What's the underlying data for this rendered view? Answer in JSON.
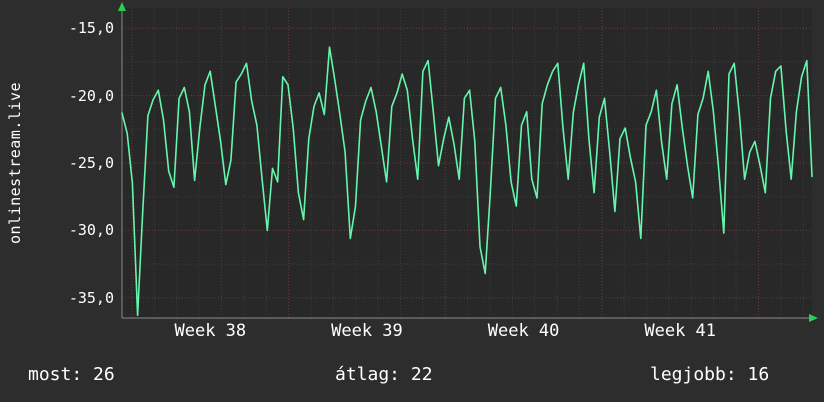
{
  "watermark": "onlinestream.live",
  "stats": {
    "most": "most: 26",
    "atlag": "átlag: 22",
    "legjobb": "legjobb: 16"
  },
  "chart_data": {
    "type": "line",
    "title": "",
    "xlabel": "",
    "ylabel": "onlinestream.live",
    "line_color": "#63f7ad",
    "arrow_color": "#27d152",
    "grid": "dotted minor gray, major red, dark background",
    "legend": "none",
    "ylim": [
      -36.5,
      -13.5
    ],
    "y_ticks": [
      -15,
      -20,
      -25,
      -30,
      -35
    ],
    "y_tick_labels": [
      "-15,0",
      "-20,0",
      "-25,0",
      "-30,0",
      "-35,0"
    ],
    "x_tick_labels": [
      "Week 38",
      "Week 39",
      "Week 40",
      "Week 41"
    ],
    "week_frac_start": 0.0145,
    "week_frac_step": 0.227,
    "values": [
      -21.3,
      -22.8,
      -26.5,
      -36.3,
      -28.5,
      -21.5,
      -20.3,
      -19.6,
      -21.8,
      -25.6,
      -26.8,
      -20.2,
      -19.4,
      -21.2,
      -26.3,
      -22.4,
      -19.2,
      -18.2,
      -20.8,
      -23.4,
      -26.6,
      -24.8,
      -19.0,
      -18.4,
      -17.6,
      -20.4,
      -22.2,
      -26.2,
      -30.0,
      -25.4,
      -26.4,
      -18.6,
      -19.2,
      -22.4,
      -27.2,
      -29.2,
      -23.2,
      -20.8,
      -19.8,
      -21.4,
      -16.4,
      -18.8,
      -21.4,
      -24.2,
      -30.6,
      -28.2,
      -21.8,
      -20.4,
      -19.4,
      -21.2,
      -23.8,
      -26.4,
      -20.8,
      -19.8,
      -18.4,
      -19.6,
      -23.2,
      -26.2,
      -18.2,
      -17.4,
      -21.2,
      -25.2,
      -23.2,
      -21.6,
      -23.6,
      -26.2,
      -20.2,
      -19.6,
      -23.4,
      -31.2,
      -33.2,
      -27.2,
      -20.2,
      -19.4,
      -22.2,
      -26.4,
      -28.2,
      -22.2,
      -21.2,
      -26.2,
      -27.6,
      -20.6,
      -19.2,
      -18.2,
      -17.6,
      -22.4,
      -26.2,
      -21.2,
      -19.2,
      -17.6,
      -23.2,
      -27.2,
      -21.6,
      -20.2,
      -24.2,
      -28.6,
      -23.2,
      -22.4,
      -24.6,
      -26.4,
      -30.6,
      -22.2,
      -21.2,
      -19.6,
      -23.4,
      -26.2,
      -20.6,
      -19.2,
      -22.4,
      -25.2,
      -27.6,
      -21.4,
      -20.2,
      -18.2,
      -21.2,
      -25.4,
      -30.2,
      -18.4,
      -17.6,
      -21.4,
      -26.2,
      -24.2,
      -23.4,
      -25.2,
      -27.2,
      -20.2,
      -18.2,
      -17.8,
      -22.6,
      -26.2,
      -21.2,
      -18.6,
      -17.4,
      -26.0
    ]
  }
}
